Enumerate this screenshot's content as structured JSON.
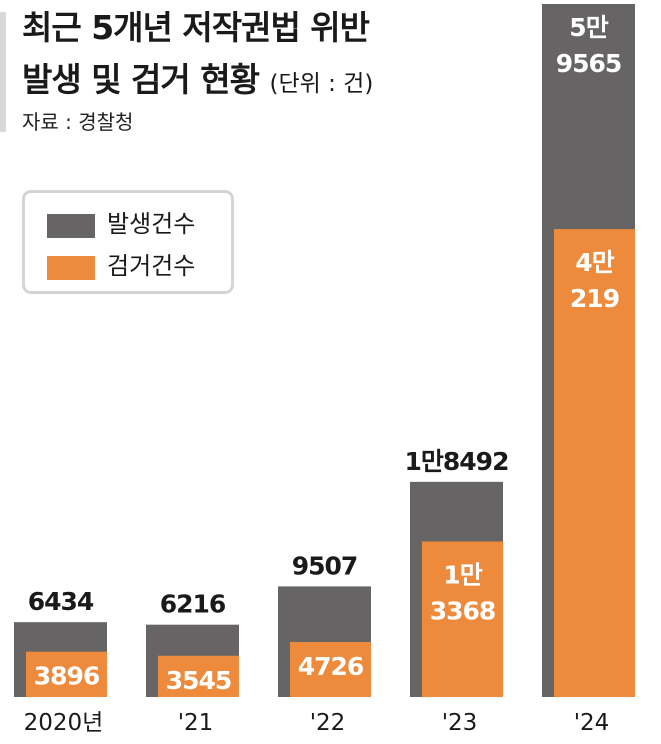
{
  "header": {
    "title_line1": "최근 5개년 저작권법 위반",
    "title_line2": "발생 및 검거 현황",
    "unit": "(단위 : 건)",
    "source": "자료 : 경찰청"
  },
  "colors": {
    "occurrence": "#666464",
    "arrest": "#ee8a3c"
  },
  "chart_data": {
    "type": "bar",
    "title": "최근 5개년 저작권법 위반 발생 및 검거 현황",
    "unit": "(단위 : 건)",
    "categories": [
      "2020년",
      "'21",
      "'22",
      "'23",
      "'24"
    ],
    "series": [
      {
        "name": "발생건수",
        "values": [
          6434,
          6216,
          9507,
          18492,
          59565
        ],
        "labels": [
          [
            "6434"
          ],
          [
            "6216"
          ],
          [
            "9507"
          ],
          [
            "1만8492"
          ],
          [
            "5만",
            "9565"
          ]
        ]
      },
      {
        "name": "검거건수",
        "values": [
          3896,
          3545,
          4726,
          13368,
          40219
        ],
        "labels": [
          [
            "3896"
          ],
          [
            "3545"
          ],
          [
            "4726"
          ],
          [
            "1만",
            "3368"
          ],
          [
            "4만",
            "219"
          ]
        ]
      }
    ],
    "legend": "top-left",
    "grid": false
  }
}
